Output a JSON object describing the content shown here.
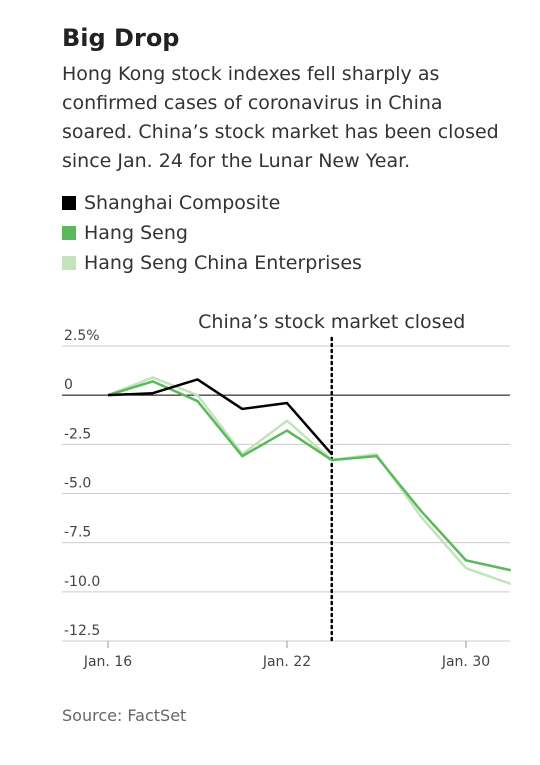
{
  "chart_data": {
    "type": "line",
    "title": "Big Drop",
    "subtitle": "Hong Kong stock indexes fell sharply as confirmed cases of coronavirus in China soared. China’s stock market has been closed since Jan. 24 for the Lunar New Year.",
    "categories": [
      "Jan. 16",
      null,
      null,
      null,
      "Jan. 22",
      null,
      null,
      null,
      "Jan. 30",
      null
    ],
    "series": [
      {
        "name": "Shanghai Composite",
        "color": "#000000",
        "values": [
          0,
          0.1,
          0.8,
          -0.7,
          -0.4,
          -3.0,
          null,
          null,
          null,
          null
        ]
      },
      {
        "name": "Hang Seng",
        "color": "#5cb85c",
        "values": [
          0,
          0.7,
          -0.3,
          -3.1,
          -1.8,
          -3.3,
          -3.1,
          -5.9,
          -8.4,
          -8.9
        ]
      },
      {
        "name": "Hang Seng China Enterprises",
        "color": "#c2e3bc",
        "values": [
          0,
          0.9,
          0.0,
          -3.0,
          -1.3,
          -3.3,
          -3.0,
          -6.2,
          -8.8,
          -9.6
        ]
      }
    ],
    "ylim": [
      -12.5,
      2.5
    ],
    "yticks": [
      {
        "value": 2.5,
        "label": "2.5%"
      },
      0,
      -2.5,
      {
        "value": -5,
        "label": "-5.0"
      },
      -7.5,
      {
        "value": -10,
        "label": "-10.0"
      },
      -12.5
    ],
    "grid": true,
    "annotation": "China’s stock market closed",
    "source": "Source: FactSet"
  }
}
